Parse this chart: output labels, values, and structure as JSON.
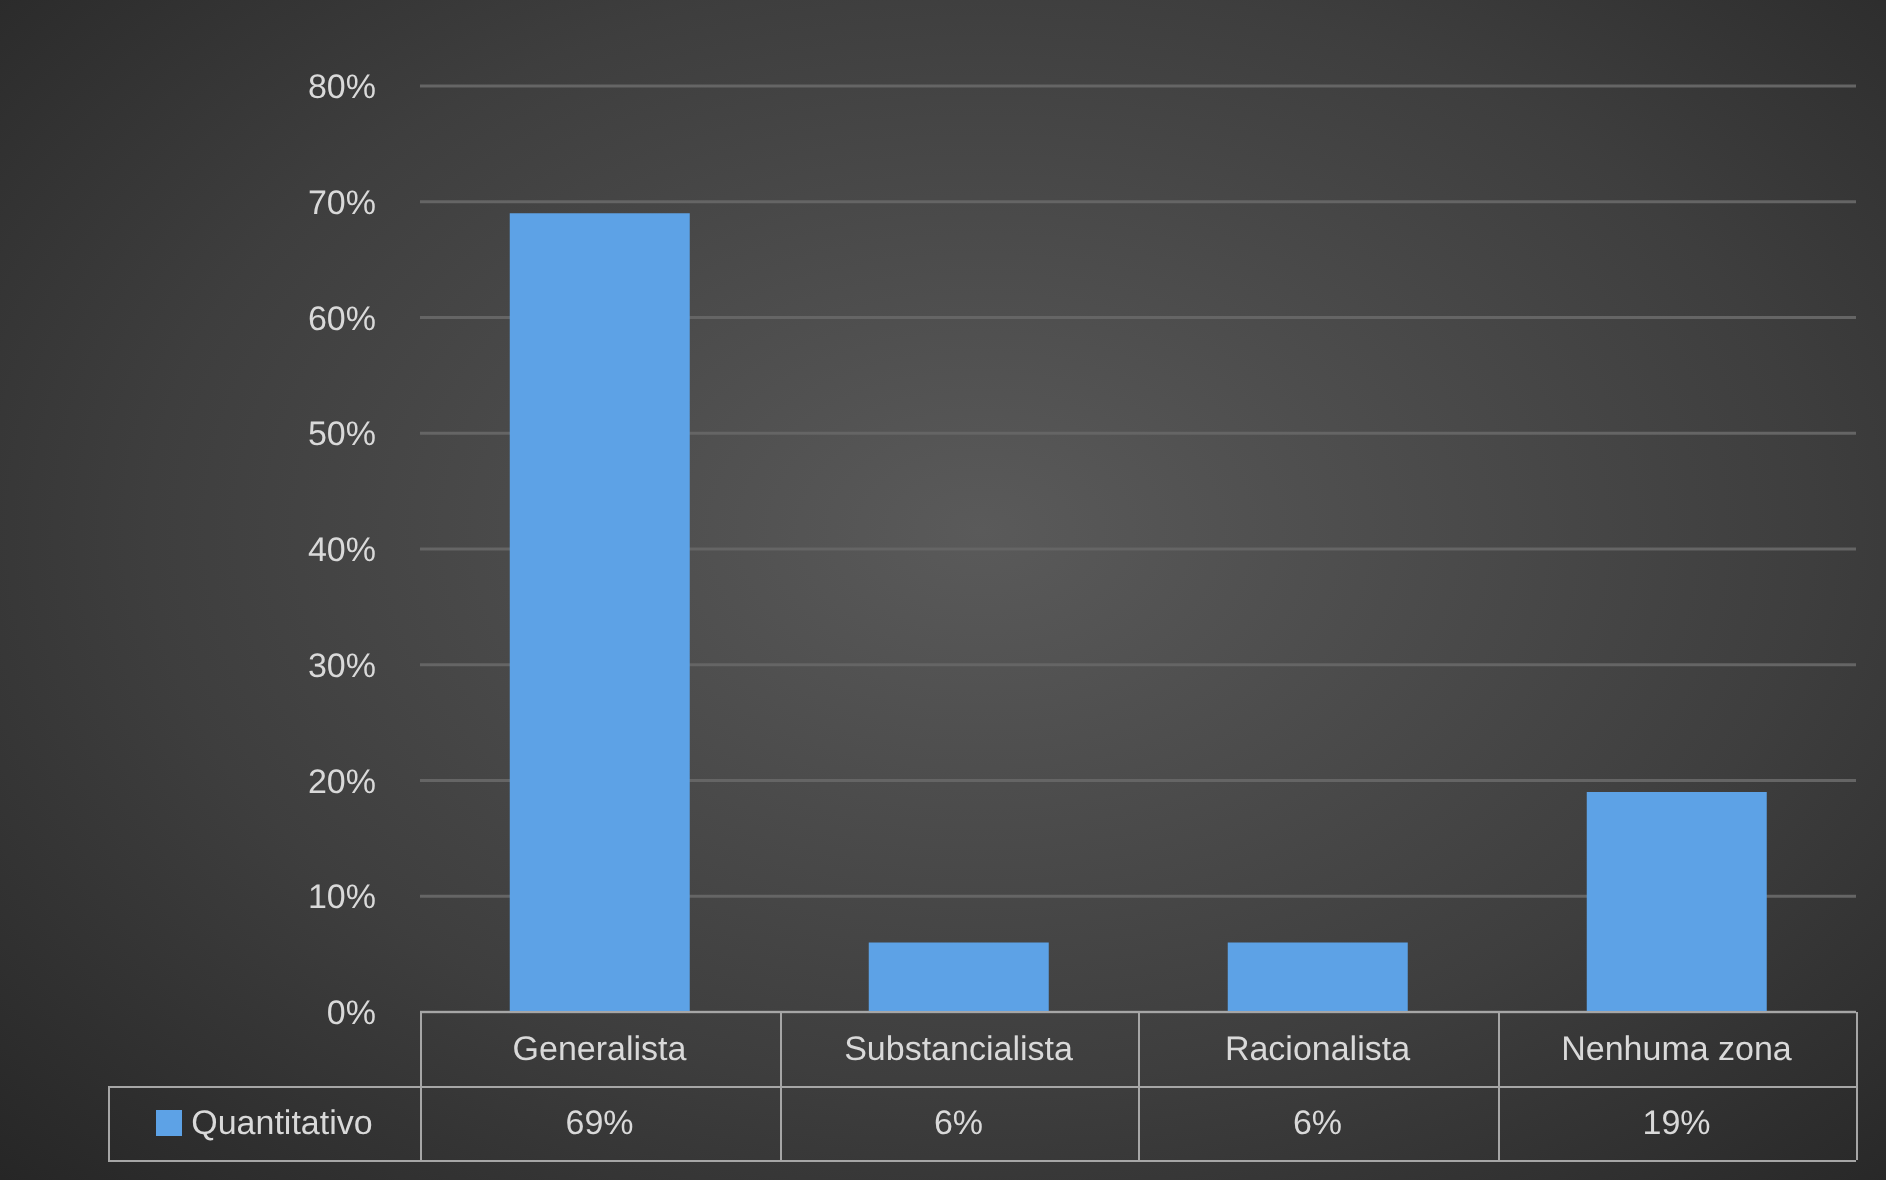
{
  "chart_data": {
    "type": "bar",
    "categories": [
      "Generalista",
      "Substancialista",
      "Racionalista",
      "Nenhuma zona"
    ],
    "series": [
      {
        "name": "Quantitativo",
        "color": "#5da2e6",
        "values": [
          69,
          6,
          6,
          19
        ],
        "value_labels": [
          "69%",
          "6%",
          "6%",
          "19%"
        ]
      }
    ],
    "ylim": [
      0,
      80
    ],
    "yticks": [
      {
        "value": 0,
        "label": "0%"
      },
      {
        "value": 10,
        "label": "10%"
      },
      {
        "value": 20,
        "label": "20%"
      },
      {
        "value": 30,
        "label": "30%"
      },
      {
        "value": 40,
        "label": "40%"
      },
      {
        "value": 50,
        "label": "50%"
      },
      {
        "value": 60,
        "label": "60%"
      },
      {
        "value": 70,
        "label": "70%"
      },
      {
        "value": 80,
        "label": "80%"
      }
    ],
    "grid": "y",
    "legend": "bottom left"
  }
}
